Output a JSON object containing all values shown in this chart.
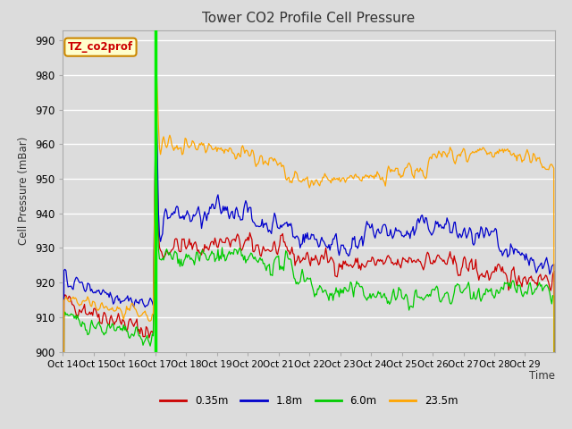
{
  "title": "Tower CO2 Profile Cell Pressure",
  "ylabel": "Cell Pressure (mBar)",
  "xlabel": "Time",
  "annotation": "TZ_co2prof",
  "ylim": [
    900,
    993
  ],
  "yticks": [
    900,
    910,
    920,
    930,
    940,
    950,
    960,
    970,
    980,
    990
  ],
  "n_points": 480,
  "spike_idx": 90,
  "xtick_labels": [
    "Oct 14",
    "Oct 15",
    "Oct 16",
    "Oct 17",
    "Oct 18",
    "Oct 19",
    "Oct 20",
    "Oct 21",
    "Oct 22",
    "Oct 23",
    "Oct 24",
    "Oct 25",
    "Oct 26",
    "Oct 27",
    "Oct 28",
    "Oct 29"
  ],
  "xtick_positions": [
    0,
    30,
    60,
    90,
    120,
    150,
    180,
    210,
    240,
    270,
    300,
    330,
    360,
    390,
    420,
    450
  ],
  "colors": {
    "0.35m": "#cc0000",
    "1.8m": "#0000cc",
    "6.0m": "#00cc00",
    "23.5m": "#ffa500"
  },
  "vline_color": "#00ee00",
  "background_color": "#dcdcdc",
  "plot_bg_color": "#dcdcdc",
  "grid_color": "#ffffff",
  "annotation_bg": "#ffffcc",
  "annotation_border": "#cc8800",
  "fig_bg": "#dcdcdc"
}
